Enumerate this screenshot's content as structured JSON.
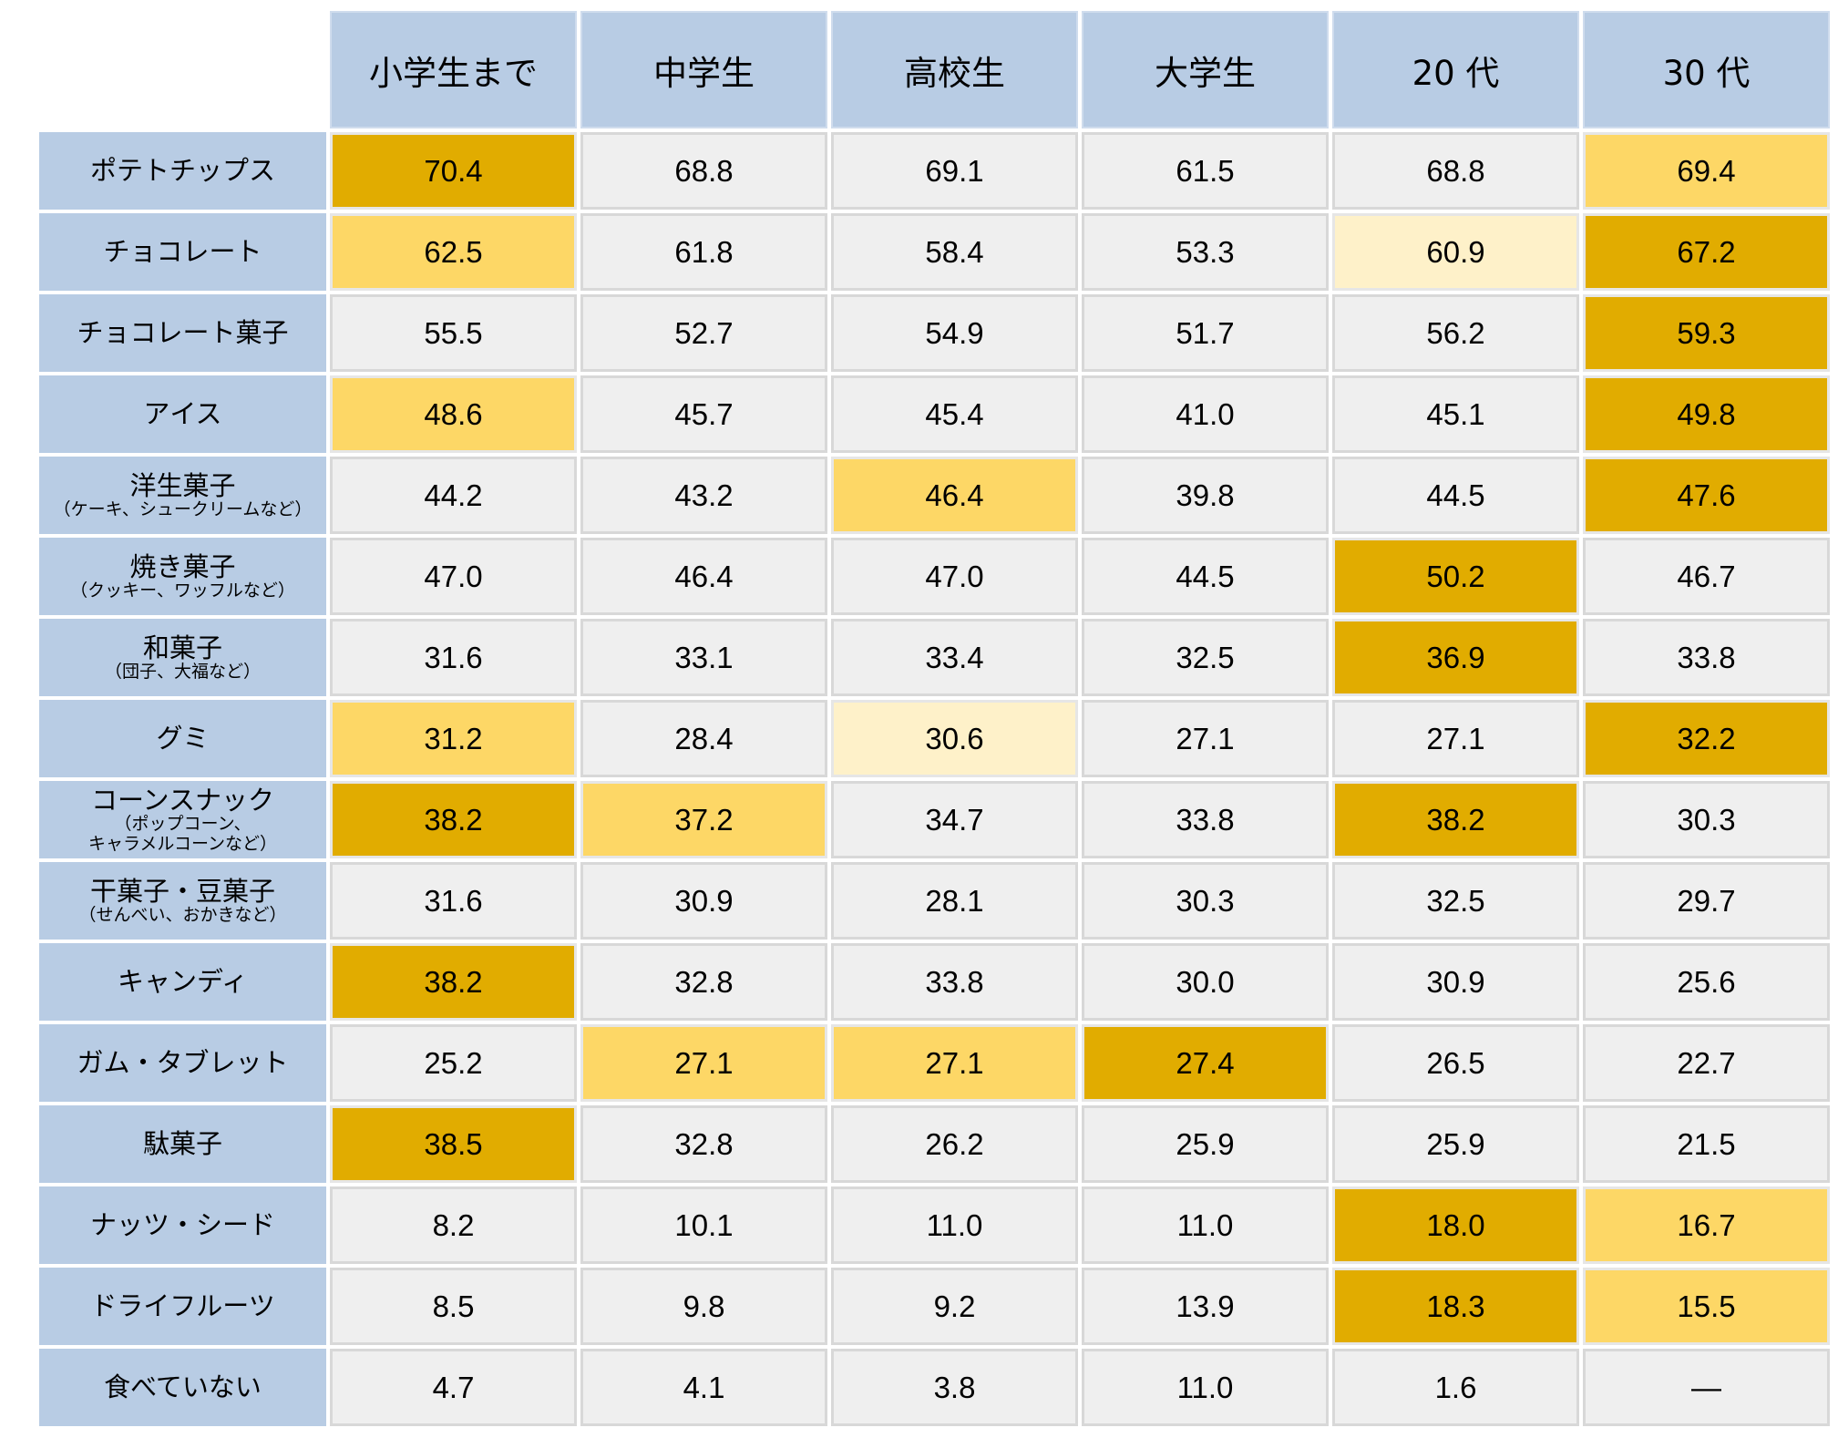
{
  "chart_data": {
    "type": "table",
    "columns": [
      "小学生まで",
      "中学生",
      "高校生",
      "大学生",
      "20 代",
      "30 代"
    ],
    "rows": [
      {
        "label": "ポテトチップス",
        "sublabel": [],
        "values": [
          "70.4",
          "68.8",
          "69.1",
          "61.5",
          "68.8",
          "69.4"
        ],
        "highlight": [
          3,
          0,
          0,
          0,
          0,
          2
        ]
      },
      {
        "label": "チョコレート",
        "sublabel": [],
        "values": [
          "62.5",
          "61.8",
          "58.4",
          "53.3",
          "60.9",
          "67.2"
        ],
        "highlight": [
          2,
          0,
          0,
          0,
          1,
          3
        ]
      },
      {
        "label": "チョコレート菓子",
        "sublabel": [],
        "values": [
          "55.5",
          "52.7",
          "54.9",
          "51.7",
          "56.2",
          "59.3"
        ],
        "highlight": [
          0,
          0,
          0,
          0,
          0,
          3
        ]
      },
      {
        "label": "アイス",
        "sublabel": [],
        "values": [
          "48.6",
          "45.7",
          "45.4",
          "41.0",
          "45.1",
          "49.8"
        ],
        "highlight": [
          2,
          0,
          0,
          0,
          0,
          3
        ]
      },
      {
        "label": "洋生菓子",
        "sublabel": [
          "（ケーキ、シュークリームなど）"
        ],
        "values": [
          "44.2",
          "43.2",
          "46.4",
          "39.8",
          "44.5",
          "47.6"
        ],
        "highlight": [
          0,
          0,
          2,
          0,
          0,
          3
        ]
      },
      {
        "label": "焼き菓子",
        "sublabel": [
          "（クッキー、ワッフルなど）"
        ],
        "values": [
          "47.0",
          "46.4",
          "47.0",
          "44.5",
          "50.2",
          "46.7"
        ],
        "highlight": [
          0,
          0,
          0,
          0,
          3,
          0
        ]
      },
      {
        "label": "和菓子",
        "sublabel": [
          "（団子、大福など）"
        ],
        "values": [
          "31.6",
          "33.1",
          "33.4",
          "32.5",
          "36.9",
          "33.8"
        ],
        "highlight": [
          0,
          0,
          0,
          0,
          3,
          0
        ]
      },
      {
        "label": "グミ",
        "sublabel": [],
        "values": [
          "31.2",
          "28.4",
          "30.6",
          "27.1",
          "27.1",
          "32.2"
        ],
        "highlight": [
          2,
          0,
          1,
          0,
          0,
          3
        ]
      },
      {
        "label": "コーンスナック",
        "sublabel": [
          "（ポップコーン、",
          "キャラメルコーンなど）"
        ],
        "values": [
          "38.2",
          "37.2",
          "34.7",
          "33.8",
          "38.2",
          "30.3"
        ],
        "highlight": [
          3,
          2,
          0,
          0,
          3,
          0
        ]
      },
      {
        "label": "干菓子・豆菓子",
        "sublabel": [
          "（せんべい、おかきなど）"
        ],
        "values": [
          "31.6",
          "30.9",
          "28.1",
          "30.3",
          "32.5",
          "29.7"
        ],
        "highlight": [
          0,
          0,
          0,
          0,
          0,
          0
        ]
      },
      {
        "label": "キャンディ",
        "sublabel": [],
        "values": [
          "38.2",
          "32.8",
          "33.8",
          "30.0",
          "30.9",
          "25.6"
        ],
        "highlight": [
          3,
          0,
          0,
          0,
          0,
          0
        ]
      },
      {
        "label": "ガム・タブレット",
        "sublabel": [],
        "values": [
          "25.2",
          "27.1",
          "27.1",
          "27.4",
          "26.5",
          "22.7"
        ],
        "highlight": [
          0,
          2,
          2,
          3,
          0,
          0
        ]
      },
      {
        "label": "駄菓子",
        "sublabel": [],
        "values": [
          "38.5",
          "32.8",
          "26.2",
          "25.9",
          "25.9",
          "21.5"
        ],
        "highlight": [
          3,
          0,
          0,
          0,
          0,
          0
        ]
      },
      {
        "label": "ナッツ・シード",
        "sublabel": [],
        "values": [
          "8.2",
          "10.1",
          "11.0",
          "11.0",
          "18.0",
          "16.7"
        ],
        "highlight": [
          0,
          0,
          0,
          0,
          3,
          2
        ]
      },
      {
        "label": "ドライフルーツ",
        "sublabel": [],
        "values": [
          "8.5",
          "9.8",
          "9.2",
          "13.9",
          "18.3",
          "15.5"
        ],
        "highlight": [
          0,
          0,
          0,
          0,
          3,
          2
        ]
      },
      {
        "label": "食べていない",
        "sublabel": [],
        "values": [
          "4.7",
          "4.1",
          "3.8",
          "11.0",
          "1.6",
          "―"
        ],
        "highlight": [
          0,
          0,
          0,
          0,
          0,
          0
        ]
      }
    ],
    "highlight_colors": {
      "1": "#fef1c9",
      "2": "#fdd766",
      "3": "#e1ac00"
    },
    "header_color": "#b8cce4",
    "cell_color": "#efefef"
  }
}
